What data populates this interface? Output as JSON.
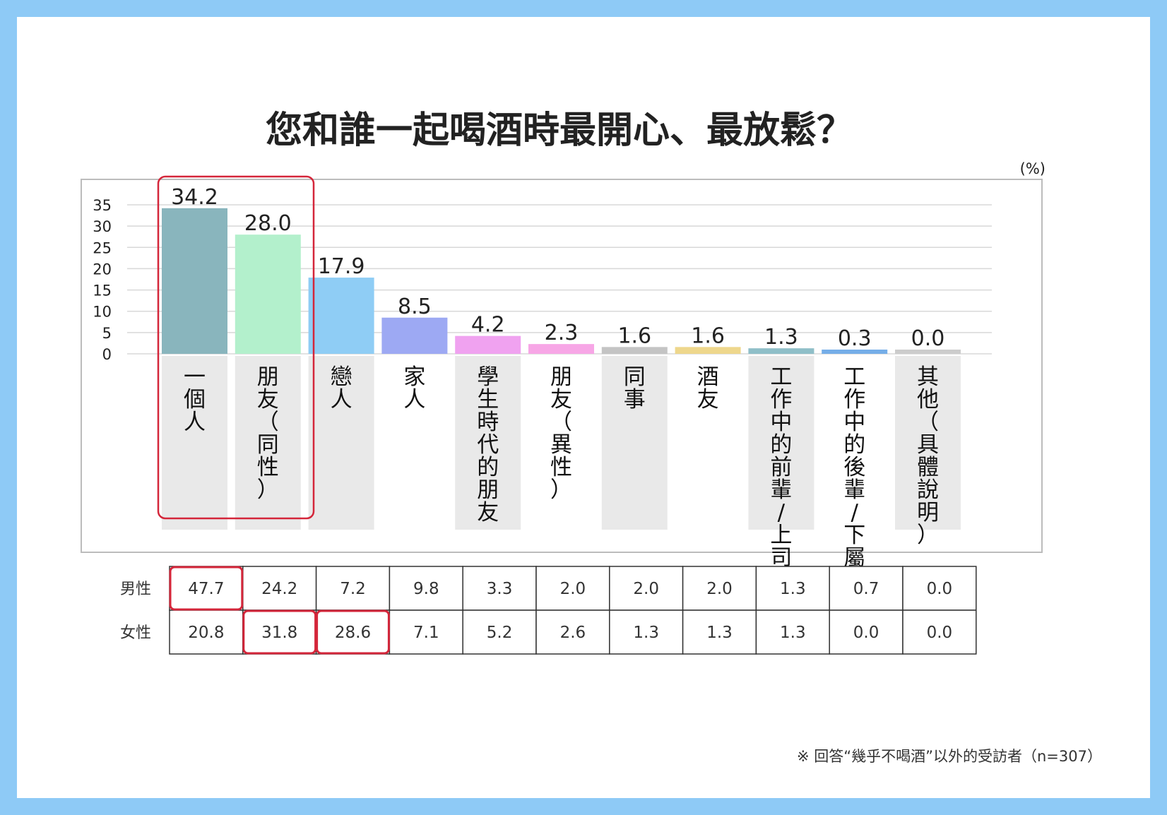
{
  "title": "您和誰一起喝酒時最開心、最放鬆？",
  "unit": "(%)",
  "note": "※ 回答“幾乎不喝酒”以外的受訪者（n=307）",
  "chart_data": {
    "type": "bar",
    "title": "您和誰一起喝酒時最開心、最放鬆？",
    "ylim": [
      0,
      35
    ],
    "yticks": [
      "0",
      "5",
      "10",
      "15",
      "20",
      "25",
      "30",
      "35"
    ],
    "grid": true,
    "categories": [
      "一個人",
      "朋友（同性）",
      "戀人",
      "家人",
      "學生時代的朋友",
      "朋友（異性）",
      "同事",
      "酒友",
      "工作中的前輩/上司",
      "工作中的後輩/下屬",
      "其他（具體說明）"
    ],
    "values": [
      34.2,
      28.0,
      17.9,
      8.5,
      4.2,
      2.3,
      1.6,
      1.6,
      1.3,
      0.3,
      0.0
    ],
    "value_labels": [
      "34.2",
      "28.0",
      "17.9",
      "8.5",
      "4.2",
      "2.3",
      "1.6",
      "1.6",
      "1.3",
      "0.3",
      "0.0"
    ],
    "colors": [
      "#89b5bd",
      "#b3f0cc",
      "#8fcdf5",
      "#9da9f3",
      "#f0a2f0",
      "#f7a6e6",
      "#c4c4c4",
      "#eed78c",
      "#8fbfc8",
      "#75aee8",
      "#cccccc"
    ],
    "highlighted_categories": [
      "一個人",
      "朋友（同性）"
    ],
    "highlight_color": "#d4263a"
  },
  "table": {
    "rows": [
      {
        "label": "男性",
        "values": [
          "47.7",
          "24.2",
          "7.2",
          "9.8",
          "3.3",
          "2.0",
          "2.0",
          "2.0",
          "1.3",
          "0.7",
          "0.0"
        ],
        "highlight": [
          0
        ]
      },
      {
        "label": "女性",
        "values": [
          "20.8",
          "31.8",
          "28.6",
          "7.1",
          "5.2",
          "2.6",
          "1.3",
          "1.3",
          "1.3",
          "0.0",
          "0.0"
        ],
        "highlight": [
          1,
          2
        ]
      }
    ]
  }
}
